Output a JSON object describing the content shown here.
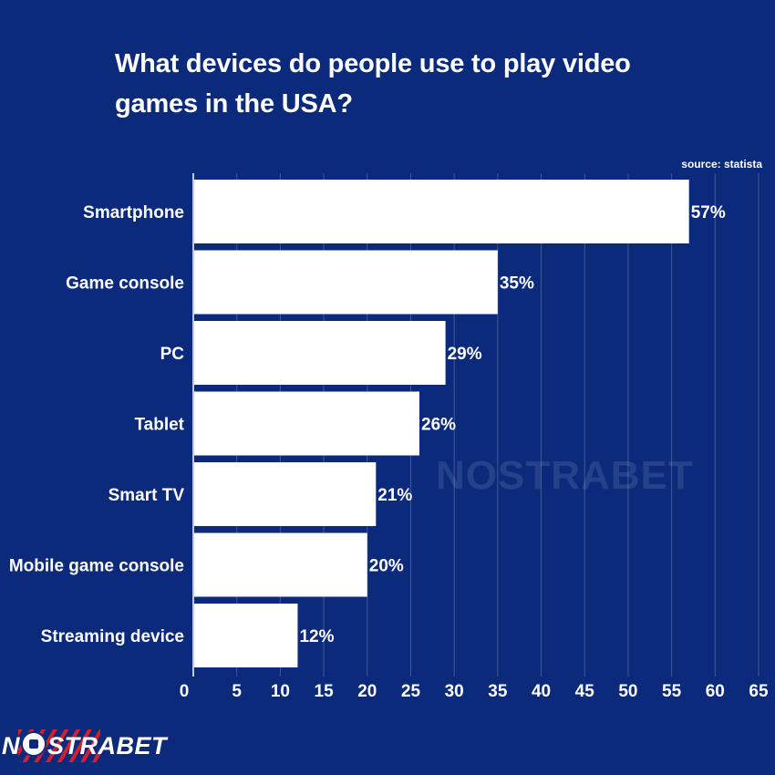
{
  "title": "What devices do people use to play video games in the USA?",
  "source": "source: statista",
  "watermark": "NOSTRABET",
  "logo": {
    "text_before": "N",
    "text_after": "STRABET",
    "ball_icon": "soccer-ball-icon"
  },
  "colors": {
    "background": "#0b2a7c",
    "bar": "#ffffff",
    "text": "#ffffff",
    "logo_accent": "#d81e2c"
  },
  "chart_data": {
    "type": "bar",
    "orientation": "horizontal",
    "categories": [
      "Smartphone",
      "Game console",
      "PC",
      "Tablet",
      "Smart TV",
      "Mobile game console",
      "Streaming device"
    ],
    "values": [
      57,
      35,
      29,
      26,
      21,
      20,
      12
    ],
    "value_labels": [
      "57%",
      "35%",
      "29%",
      "26%",
      "21%",
      "20%",
      "12%"
    ],
    "xlim": [
      0,
      65
    ],
    "xticks": [
      0,
      5,
      10,
      15,
      20,
      25,
      30,
      35,
      40,
      45,
      50,
      55,
      60,
      65
    ],
    "grid": true,
    "title": "What devices do people use to play video games in the USA?"
  }
}
